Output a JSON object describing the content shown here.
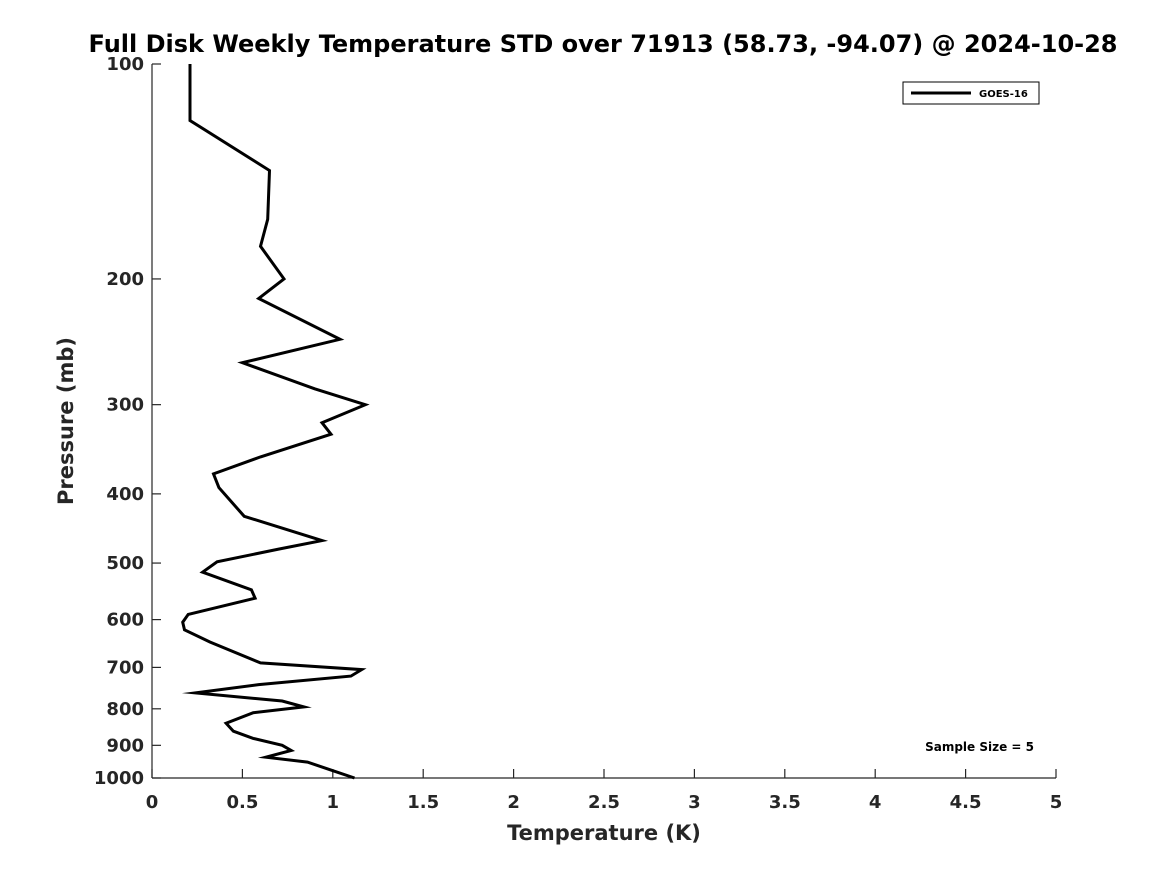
{
  "chart_data": {
    "type": "line",
    "title": "Full Disk Weekly Temperature STD over 71913 (58.73, -94.07) @ 2024-10-28",
    "xlabel": "Temperature (K)",
    "ylabel": "Pressure (mb)",
    "xlim": [
      0,
      5
    ],
    "ylim": [
      100,
      1000
    ],
    "y_scale": "log",
    "y_reversed": true,
    "grid": false,
    "legend_position": "top-right",
    "xticks": [
      0,
      0.5,
      1,
      1.5,
      2,
      2.5,
      3,
      3.5,
      4,
      4.5,
      5
    ],
    "xtick_labels": [
      "0",
      "0.5",
      "1",
      "1.5",
      "2",
      "2.5",
      "3",
      "3.5",
      "4",
      "4.5",
      "5"
    ],
    "yticks": [
      100,
      200,
      300,
      400,
      500,
      600,
      700,
      800,
      900,
      1000
    ],
    "ytick_labels": [
      "100",
      "200",
      "300",
      "400",
      "500",
      "600",
      "700",
      "800",
      "900",
      "1000"
    ],
    "series": [
      {
        "name": "GOES-16",
        "color": "#000000",
        "x": [
          0.21,
          0.21,
          0.65,
          0.64,
          0.6,
          0.73,
          0.59,
          1.04,
          0.5,
          0.9,
          1.18,
          0.94,
          0.99,
          0.6,
          0.34,
          0.37,
          0.51,
          0.94,
          0.7,
          0.36,
          0.28,
          0.55,
          0.57,
          0.2,
          0.17,
          0.18,
          0.32,
          0.6,
          1.16,
          1.1,
          0.59,
          0.24,
          0.72,
          0.84,
          0.56,
          0.41,
          0.45,
          0.56,
          0.72,
          0.77,
          0.63,
          0.86,
          0.99,
          1.12
        ],
        "y": [
          100,
          120,
          141,
          165,
          180,
          200,
          213,
          243,
          262,
          285,
          300,
          318,
          330,
          355,
          375,
          392,
          430,
          465,
          478,
          498,
          515,
          545,
          560,
          590,
          605,
          620,
          645,
          690,
          705,
          720,
          740,
          760,
          780,
          795,
          810,
          838,
          860,
          880,
          900,
          915,
          935,
          950,
          975,
          1000
        ]
      }
    ],
    "annotations": [
      "Sample Size = 5"
    ]
  }
}
